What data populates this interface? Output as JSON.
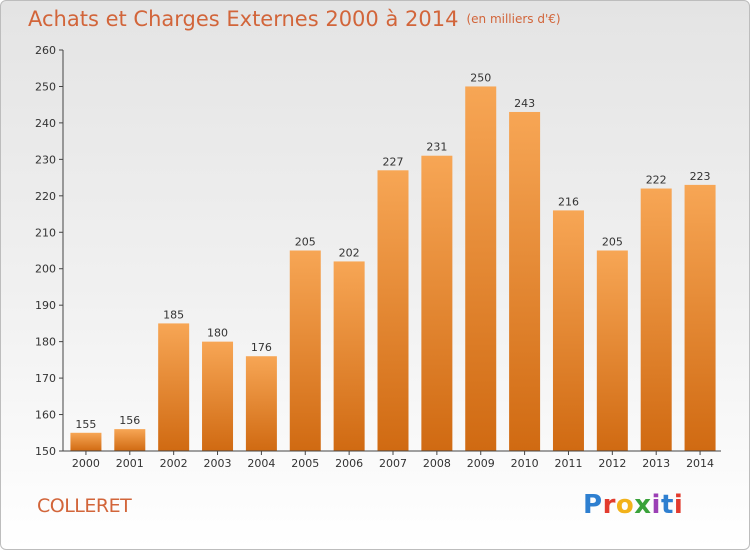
{
  "title": "Achats et Charges Externes 2000 à 2014",
  "unit": "(en milliers d'€)",
  "commune": "COLLERET",
  "logo": {
    "text": "Proxiti",
    "colors": [
      "#2e7fd0",
      "#e23b2e",
      "#f2b21a",
      "#3aa23a",
      "#9b3fb5",
      "#2e7fd0",
      "#e23b2e"
    ]
  },
  "colors": {
    "bar_top": "#f7a655",
    "bar_bottom": "#d06a12",
    "title": "#d2653a"
  },
  "chart_data": {
    "type": "bar",
    "categories": [
      "2000",
      "2001",
      "2002",
      "2003",
      "2004",
      "2005",
      "2006",
      "2007",
      "2008",
      "2009",
      "2010",
      "2011",
      "2012",
      "2013",
      "2014"
    ],
    "values": [
      155,
      156,
      185,
      180,
      176,
      205,
      202,
      227,
      231,
      250,
      243,
      216,
      205,
      222,
      223
    ],
    "ylim": [
      150,
      260
    ],
    "yticks": [
      150,
      160,
      170,
      180,
      190,
      200,
      210,
      220,
      230,
      240,
      250,
      260
    ],
    "grid": false
  }
}
